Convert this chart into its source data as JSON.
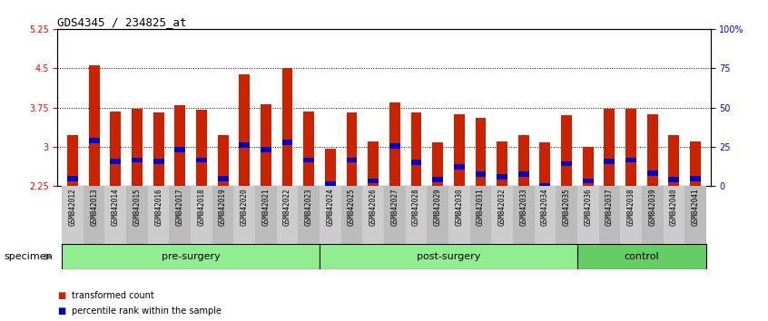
{
  "title": "GDS4345 / 234825_at",
  "samples": [
    "GSM842012",
    "GSM842013",
    "GSM842014",
    "GSM842015",
    "GSM842016",
    "GSM842017",
    "GSM842018",
    "GSM842019",
    "GSM842020",
    "GSM842021",
    "GSM842022",
    "GSM842023",
    "GSM842024",
    "GSM842025",
    "GSM842026",
    "GSM842027",
    "GSM842028",
    "GSM842029",
    "GSM842030",
    "GSM842031",
    "GSM842032",
    "GSM842033",
    "GSM842034",
    "GSM842035",
    "GSM842036",
    "GSM842037",
    "GSM842038",
    "GSM842039",
    "GSM842040",
    "GSM842041"
  ],
  "red_values": [
    3.22,
    4.55,
    3.68,
    3.72,
    3.65,
    3.8,
    3.7,
    3.22,
    4.38,
    3.82,
    4.5,
    3.68,
    2.97,
    3.65,
    3.1,
    3.85,
    3.65,
    3.08,
    3.62,
    3.55,
    3.1,
    3.22,
    3.08,
    3.6,
    3.0,
    3.72,
    3.72,
    3.62,
    3.22,
    3.1
  ],
  "blue_positions": [
    2.4,
    3.12,
    2.72,
    2.75,
    2.72,
    2.95,
    2.75,
    2.4,
    3.04,
    2.95,
    3.08,
    2.75,
    2.3,
    2.75,
    2.35,
    3.02,
    2.7,
    2.38,
    2.62,
    2.48,
    2.43,
    2.48,
    2.25,
    2.68,
    2.35,
    2.72,
    2.75,
    2.5,
    2.38,
    2.4
  ],
  "groups": [
    {
      "name": "pre-surgery",
      "start": 0,
      "end": 12,
      "color": "#90EE90"
    },
    {
      "name": "post-surgery",
      "start": 12,
      "end": 24,
      "color": "#90EE90"
    },
    {
      "name": "control",
      "start": 24,
      "end": 30,
      "color": "#66CC66"
    }
  ],
  "ymin": 2.25,
  "ymax": 5.25,
  "yticks": [
    2.25,
    3.0,
    3.75,
    4.5,
    5.25
  ],
  "ytick_labels": [
    "2.25",
    "3",
    "3.75",
    "4.5",
    "5.25"
  ],
  "y2ticks": [
    0,
    25,
    50,
    75,
    100
  ],
  "y2tick_labels": [
    "0",
    "25",
    "50",
    "75",
    "100%"
  ],
  "bar_color": "#CC2200",
  "blue_color": "#0000CC",
  "bar_width": 0.5,
  "legend_items": [
    {
      "label": "transformed count",
      "color": "#CC2200"
    },
    {
      "label": "percentile rank within the sample",
      "color": "#0000CC"
    }
  ],
  "specimen_label": "specimen",
  "tick_fontsize": 7,
  "xtick_fontsize": 5.5,
  "title_fontsize": 9,
  "group_fontsize": 8,
  "legend_fontsize": 7,
  "dotted_gridlines": [
    3.0,
    3.75,
    4.5
  ],
  "col_bg_even": "#CCCCCC",
  "col_bg_odd": "#BBBBBB"
}
